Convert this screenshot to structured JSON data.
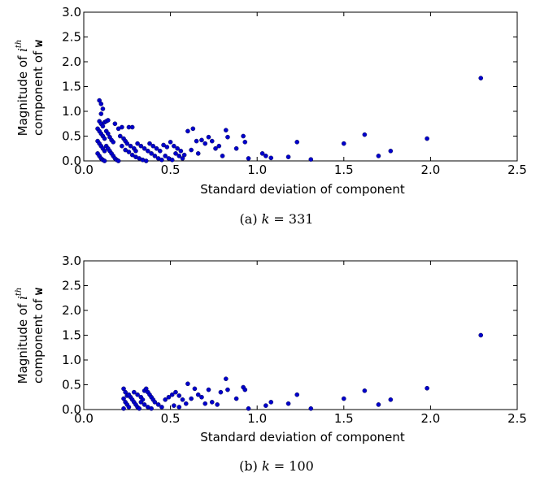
{
  "chart_data": [
    {
      "type": "scatter",
      "caption": "(a) k = 331",
      "xlabel": "Standard deviation of component",
      "ylabel_line1": "Magnitude of i^th",
      "ylabel_line2": "component of w",
      "xlim": [
        0.0,
        2.5
      ],
      "ylim": [
        0.0,
        3.0
      ],
      "xticks": [
        "0.0",
        "0.5",
        "1.0",
        "1.5",
        "2.0",
        "2.5"
      ],
      "yticks": [
        "0.0",
        "0.5",
        "1.0",
        "1.5",
        "2.0",
        "2.5",
        "3.0"
      ],
      "color": "#0000cc",
      "points": [
        [
          0.09,
          1.22
        ],
        [
          0.1,
          1.15
        ],
        [
          0.11,
          1.05
        ],
        [
          0.1,
          0.95
        ],
        [
          0.09,
          0.8
        ],
        [
          0.1,
          0.75
        ],
        [
          0.11,
          0.7
        ],
        [
          0.12,
          0.78
        ],
        [
          0.13,
          0.8
        ],
        [
          0.14,
          0.82
        ],
        [
          0.08,
          0.65
        ],
        [
          0.09,
          0.6
        ],
        [
          0.1,
          0.55
        ],
        [
          0.11,
          0.5
        ],
        [
          0.12,
          0.45
        ],
        [
          0.08,
          0.4
        ],
        [
          0.09,
          0.35
        ],
        [
          0.1,
          0.3
        ],
        [
          0.11,
          0.25
        ],
        [
          0.12,
          0.2
        ],
        [
          0.08,
          0.15
        ],
        [
          0.09,
          0.1
        ],
        [
          0.1,
          0.05
        ],
        [
          0.11,
          0.02
        ],
        [
          0.12,
          0.0
        ],
        [
          0.13,
          0.6
        ],
        [
          0.14,
          0.55
        ],
        [
          0.15,
          0.48
        ],
        [
          0.16,
          0.42
        ],
        [
          0.17,
          0.38
        ],
        [
          0.13,
          0.3
        ],
        [
          0.14,
          0.25
        ],
        [
          0.15,
          0.2
        ],
        [
          0.16,
          0.15
        ],
        [
          0.17,
          0.1
        ],
        [
          0.18,
          0.05
        ],
        [
          0.19,
          0.02
        ],
        [
          0.2,
          0.0
        ],
        [
          0.18,
          0.75
        ],
        [
          0.2,
          0.65
        ],
        [
          0.22,
          0.68
        ],
        [
          0.26,
          0.68
        ],
        [
          0.28,
          0.68
        ],
        [
          0.21,
          0.5
        ],
        [
          0.23,
          0.45
        ],
        [
          0.24,
          0.4
        ],
        [
          0.25,
          0.35
        ],
        [
          0.27,
          0.3
        ],
        [
          0.29,
          0.25
        ],
        [
          0.3,
          0.2
        ],
        [
          0.22,
          0.3
        ],
        [
          0.24,
          0.22
        ],
        [
          0.26,
          0.18
        ],
        [
          0.28,
          0.12
        ],
        [
          0.3,
          0.08
        ],
        [
          0.32,
          0.05
        ],
        [
          0.34,
          0.02
        ],
        [
          0.36,
          0.0
        ],
        [
          0.31,
          0.35
        ],
        [
          0.33,
          0.3
        ],
        [
          0.35,
          0.25
        ],
        [
          0.37,
          0.2
        ],
        [
          0.39,
          0.15
        ],
        [
          0.41,
          0.1
        ],
        [
          0.43,
          0.05
        ],
        [
          0.45,
          0.02
        ],
        [
          0.38,
          0.35
        ],
        [
          0.4,
          0.3
        ],
        [
          0.42,
          0.25
        ],
        [
          0.44,
          0.2
        ],
        [
          0.46,
          0.32
        ],
        [
          0.48,
          0.28
        ],
        [
          0.5,
          0.38
        ],
        [
          0.52,
          0.3
        ],
        [
          0.54,
          0.25
        ],
        [
          0.56,
          0.2
        ],
        [
          0.58,
          0.12
        ],
        [
          0.47,
          0.1
        ],
        [
          0.49,
          0.05
        ],
        [
          0.51,
          0.02
        ],
        [
          0.53,
          0.15
        ],
        [
          0.55,
          0.1
        ],
        [
          0.57,
          0.05
        ],
        [
          0.6,
          0.6
        ],
        [
          0.63,
          0.65
        ],
        [
          0.62,
          0.22
        ],
        [
          0.65,
          0.4
        ],
        [
          0.66,
          0.15
        ],
        [
          0.68,
          0.42
        ],
        [
          0.7,
          0.35
        ],
        [
          0.72,
          0.48
        ],
        [
          0.74,
          0.4
        ],
        [
          0.76,
          0.25
        ],
        [
          0.78,
          0.3
        ],
        [
          0.8,
          0.1
        ],
        [
          0.82,
          0.62
        ],
        [
          0.83,
          0.48
        ],
        [
          0.88,
          0.25
        ],
        [
          0.92,
          0.5
        ],
        [
          0.93,
          0.38
        ],
        [
          0.95,
          0.05
        ],
        [
          1.03,
          0.15
        ],
        [
          1.05,
          0.1
        ],
        [
          1.08,
          0.06
        ],
        [
          1.18,
          0.08
        ],
        [
          1.23,
          0.38
        ],
        [
          1.31,
          0.03
        ],
        [
          1.5,
          0.35
        ],
        [
          1.62,
          0.53
        ],
        [
          1.7,
          0.1
        ],
        [
          1.77,
          0.2
        ],
        [
          1.98,
          0.45
        ],
        [
          2.29,
          1.67
        ]
      ]
    },
    {
      "type": "scatter",
      "caption": "(b) k = 100",
      "xlabel": "Standard deviation of component",
      "ylabel_line1": "Magnitude of i^th",
      "ylabel_line2": "component of w",
      "xlim": [
        0.0,
        2.5
      ],
      "ylim": [
        0.0,
        3.0
      ],
      "xticks": [
        "0.0",
        "0.5",
        "1.0",
        "1.5",
        "2.0",
        "2.5"
      ],
      "yticks": [
        "0.0",
        "0.5",
        "1.0",
        "1.5",
        "2.0",
        "2.5",
        "3.0"
      ],
      "color": "#0000cc",
      "points": [
        [
          0.23,
          0.42
        ],
        [
          0.24,
          0.35
        ],
        [
          0.25,
          0.28
        ],
        [
          0.23,
          0.22
        ],
        [
          0.24,
          0.15
        ],
        [
          0.25,
          0.1
        ],
        [
          0.26,
          0.05
        ],
        [
          0.23,
          0.02
        ],
        [
          0.27,
          0.25
        ],
        [
          0.28,
          0.2
        ],
        [
          0.26,
          0.3
        ],
        [
          0.29,
          0.15
        ],
        [
          0.3,
          0.1
        ],
        [
          0.31,
          0.05
        ],
        [
          0.32,
          0.02
        ],
        [
          0.29,
          0.35
        ],
        [
          0.31,
          0.3
        ],
        [
          0.33,
          0.25
        ],
        [
          0.34,
          0.2
        ],
        [
          0.35,
          0.38
        ],
        [
          0.36,
          0.42
        ],
        [
          0.37,
          0.35
        ],
        [
          0.38,
          0.3
        ],
        [
          0.39,
          0.25
        ],
        [
          0.4,
          0.2
        ],
        [
          0.33,
          0.15
        ],
        [
          0.35,
          0.1
        ],
        [
          0.37,
          0.05
        ],
        [
          0.39,
          0.02
        ],
        [
          0.41,
          0.15
        ],
        [
          0.43,
          0.1
        ],
        [
          0.45,
          0.05
        ],
        [
          0.47,
          0.2
        ],
        [
          0.49,
          0.25
        ],
        [
          0.51,
          0.3
        ],
        [
          0.53,
          0.35
        ],
        [
          0.55,
          0.28
        ],
        [
          0.57,
          0.2
        ],
        [
          0.59,
          0.12
        ],
        [
          0.52,
          0.08
        ],
        [
          0.55,
          0.05
        ],
        [
          0.6,
          0.52
        ],
        [
          0.62,
          0.22
        ],
        [
          0.64,
          0.42
        ],
        [
          0.66,
          0.3
        ],
        [
          0.68,
          0.25
        ],
        [
          0.7,
          0.12
        ],
        [
          0.72,
          0.4
        ],
        [
          0.74,
          0.15
        ],
        [
          0.77,
          0.1
        ],
        [
          0.79,
          0.35
        ],
        [
          0.82,
          0.62
        ],
        [
          0.83,
          0.4
        ],
        [
          0.88,
          0.22
        ],
        [
          0.92,
          0.45
        ],
        [
          0.93,
          0.4
        ],
        [
          0.95,
          0.02
        ],
        [
          1.05,
          0.08
        ],
        [
          1.08,
          0.15
        ],
        [
          1.18,
          0.12
        ],
        [
          1.23,
          0.3
        ],
        [
          1.31,
          0.02
        ],
        [
          1.5,
          0.22
        ],
        [
          1.62,
          0.38
        ],
        [
          1.7,
          0.1
        ],
        [
          1.77,
          0.2
        ],
        [
          1.98,
          0.43
        ],
        [
          2.29,
          1.5
        ]
      ]
    }
  ],
  "captions": {
    "a_prefix": "(a) ",
    "a_var": "k",
    "a_eq": " = 331",
    "b_prefix": "(b) ",
    "b_var": "k",
    "b_eq": " = 100"
  },
  "ylabel_parts": {
    "mag": "Magnitude of ",
    "i": "i",
    "th": "th",
    "comp": "component of ",
    "w": "w"
  }
}
